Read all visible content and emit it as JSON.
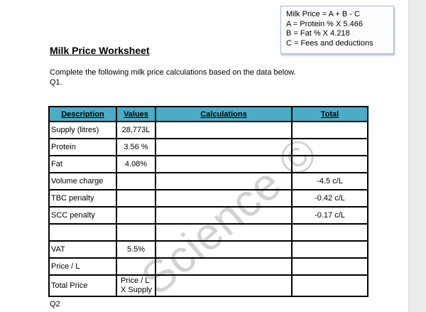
{
  "page": {
    "title": "Milk Price Worksheet",
    "instruction": "Complete the following milk price calculations based on the data below.",
    "q1_label": "Q1.",
    "q2_label": "Q2",
    "watermark": "Science ©"
  },
  "formula_box": {
    "lines": [
      "Milk Price = A + B - C",
      "A = Protein % X 5.466",
      "B = Fat % X 4.218",
      "C = Fees and deductions"
    ]
  },
  "table": {
    "headers": [
      "Description",
      "Values",
      "Calculations",
      "Total"
    ],
    "rows": [
      {
        "description": "Supply (litres)",
        "values": "28,773L",
        "calculations": "",
        "total": ""
      },
      {
        "description": "Protein",
        "values": "3.56 %",
        "calculations": "",
        "total": ""
      },
      {
        "description": "Fat",
        "values": "4.08%",
        "calculations": "",
        "total": ""
      },
      {
        "description": "Volume charge",
        "values": "",
        "calculations": "",
        "total": "-4.5 c/L"
      },
      {
        "description": "TBC penalty",
        "values": "",
        "calculations": "",
        "total": "-0.42 c/L"
      },
      {
        "description": "SCC penalty",
        "values": "",
        "calculations": "",
        "total": "-0.17 c/L"
      },
      {
        "description": "",
        "values": "",
        "calculations": "",
        "total": ""
      },
      {
        "description": "VAT",
        "values": "5.5%",
        "calculations": "",
        "total": ""
      },
      {
        "description": "Price / L",
        "values": "",
        "calculations": "",
        "total": ""
      },
      {
        "description": "Total Price",
        "values": "Price / L\nX Supply",
        "calculations": "",
        "total": ""
      }
    ]
  },
  "colors": {
    "table_header_bg": "#4BACC6",
    "table_border": "#000000",
    "formula_box_border": "#9DB8DA",
    "page_edge_strip": "#ECECEC",
    "watermark": "#D2D2D2"
  }
}
